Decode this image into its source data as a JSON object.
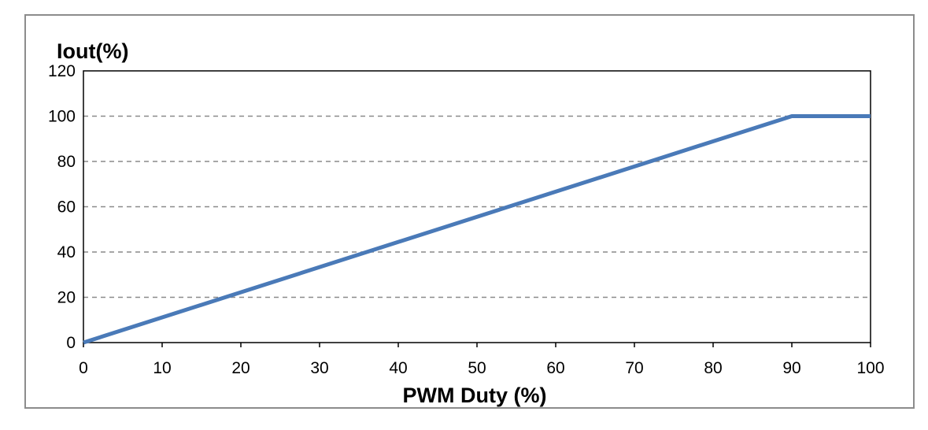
{
  "chart_data": {
    "type": "line",
    "title": "",
    "xlabel": "PWM Duty (%)",
    "ylabel": "Iout(%)",
    "xlim": [
      0,
      100
    ],
    "ylim": [
      0,
      120
    ],
    "x_ticks": [
      "0",
      "10",
      "20",
      "30",
      "40",
      "50",
      "60",
      "70",
      "80",
      "90",
      "100"
    ],
    "y_ticks": [
      "0",
      "20",
      "40",
      "60",
      "80",
      "100",
      "120"
    ],
    "grid": "horizontal dashed",
    "legend": "none",
    "series": [
      {
        "color": "#4a7ab8",
        "points": [
          [
            0,
            0
          ],
          [
            90,
            100
          ],
          [
            100,
            100
          ]
        ]
      }
    ]
  }
}
